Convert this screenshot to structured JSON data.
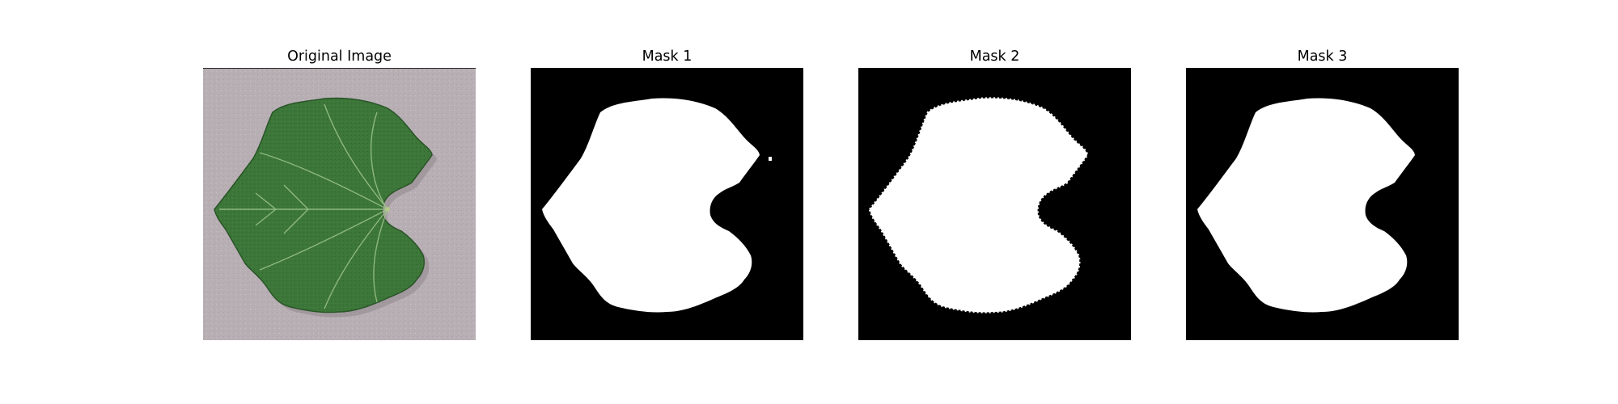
{
  "figure": {
    "panels": [
      {
        "title": "Original Image"
      },
      {
        "title": "Mask 1"
      },
      {
        "title": "Mask 2"
      },
      {
        "title": "Mask 3"
      }
    ]
  },
  "colors": {
    "background": "#ffffff",
    "leaf": "#3f7a3c",
    "leaf_dark": "#2e5e2c",
    "vein": "#8fb87a",
    "surface": "#b9b0b5",
    "mask_background": "#000000",
    "mask_foreground": "#ffffff"
  }
}
